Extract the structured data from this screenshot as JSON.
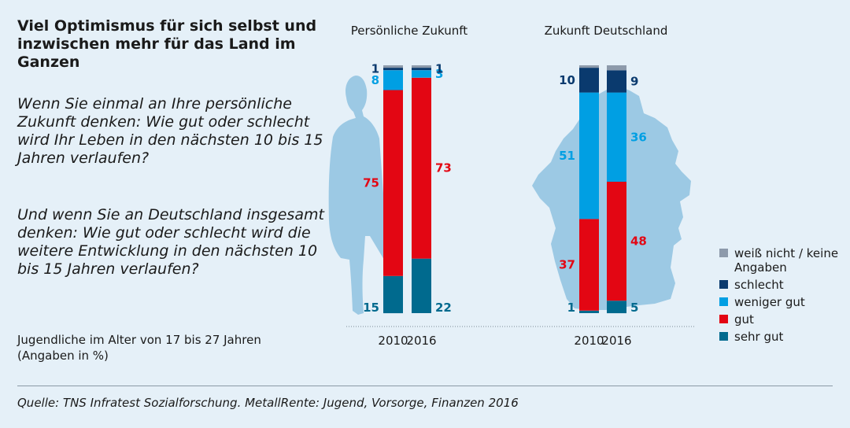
{
  "title": "Viel Optimismus für sich selbst und inzwischen mehr für das Land im Ganzen",
  "question1": "Wenn Sie einmal an Ihre persönliche Zukunft denken: Wie gut oder schlecht wird Ihr Leben in den nächsten 10 bis 15 Jahren verlaufen?",
  "question2": "Und wenn Sie an Deutschland insgesamt denken: Wie gut oder schlecht wird die weitere Entwicklung in den nächsten 10 bis 15 Jahren verlaufen?",
  "note_line1": "Jugendliche im Alter von 17 bis 27 Jahren",
  "note_line2": "(Angaben in %)",
  "source": "Quelle: TNS Infratest Sozialforschung. MetallRente: Jugend, Vorsorge, Finanzen 2016",
  "colors": {
    "weiss_nicht": "#8d9aab",
    "schlecht": "#0a3a6e",
    "weniger_gut": "#009fe3",
    "gut": "#e30613",
    "sehr_gut": "#006a8e",
    "silhouette": "#9cc9e4"
  },
  "chart_data": [
    {
      "type": "bar",
      "stacked": true,
      "title": "Persönliche Zukunft",
      "categories": [
        "2010",
        "2016"
      ],
      "series": [
        {
          "name": "sehr gut",
          "values": [
            15,
            22
          ]
        },
        {
          "name": "gut",
          "values": [
            75,
            73
          ]
        },
        {
          "name": "weniger gut",
          "values": [
            8,
            3
          ]
        },
        {
          "name": "schlecht",
          "values": [
            1,
            1
          ]
        },
        {
          "name": "weiß nicht / keine Angaben",
          "values": [
            1,
            1
          ]
        }
      ],
      "labels_shown": {
        "sehr gut": [
          "15",
          "22"
        ],
        "gut": [
          "75",
          "73"
        ],
        "weniger gut": [
          "8",
          "3"
        ],
        "schlecht": [
          "1",
          "1"
        ]
      },
      "ylim": [
        0,
        100
      ],
      "background_icon": "person-silhouette"
    },
    {
      "type": "bar",
      "stacked": true,
      "title": "Zukunft Deutschland",
      "categories": [
        "2010",
        "2016"
      ],
      "series": [
        {
          "name": "sehr gut",
          "values": [
            1,
            5
          ]
        },
        {
          "name": "gut",
          "values": [
            37,
            48
          ]
        },
        {
          "name": "weniger gut",
          "values": [
            51,
            36
          ]
        },
        {
          "name": "schlecht",
          "values": [
            10,
            9
          ]
        },
        {
          "name": "weiß nicht / keine Angaben",
          "values": [
            1,
            2
          ]
        }
      ],
      "labels_shown": {
        "sehr gut": [
          "1",
          "5"
        ],
        "gut": [
          "37",
          "48"
        ],
        "weniger gut": [
          "51",
          "36"
        ],
        "schlecht": [
          "10",
          "9"
        ]
      },
      "ylim": [
        0,
        100
      ],
      "background_icon": "germany-map"
    }
  ],
  "legend": [
    {
      "label": "weiß nicht / keine Angaben",
      "color_key": "weiss_nicht"
    },
    {
      "label": "schlecht",
      "color_key": "schlecht"
    },
    {
      "label": "weniger gut",
      "color_key": "weniger_gut"
    },
    {
      "label": "gut",
      "color_key": "gut"
    },
    {
      "label": "sehr gut",
      "color_key": "sehr_gut"
    }
  ]
}
